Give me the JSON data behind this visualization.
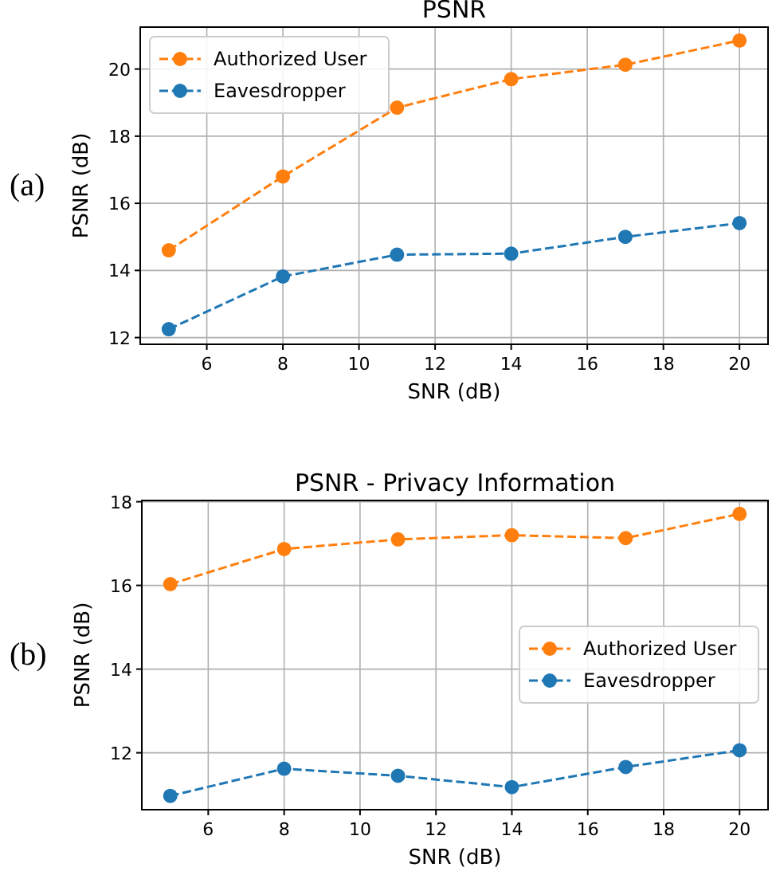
{
  "chart_data": [
    {
      "type": "line",
      "title": "PSNR",
      "xlabel": "SNR (dB)",
      "ylabel": "PSNR (dB)",
      "annotations": [
        "(a)"
      ],
      "x": [
        5,
        8,
        11,
        14,
        17,
        20
      ],
      "xlim": [
        4.25,
        20.75
      ],
      "xticks": [
        6,
        8,
        10,
        12,
        14,
        16,
        18,
        20
      ],
      "ylim": [
        11.8,
        21.25
      ],
      "yticks": [
        12,
        14,
        16,
        18,
        20
      ],
      "grid": true,
      "legend": "top left",
      "marker": "circle",
      "line_style": "dashed",
      "series": [
        {
          "name": "Authorized User",
          "color": "#ff7f0e",
          "values": [
            14.6,
            16.8,
            18.85,
            19.7,
            20.13,
            20.85
          ]
        },
        {
          "name": "Eavesdropper",
          "color": "#1f77b4",
          "values": [
            12.25,
            13.82,
            14.47,
            14.5,
            15.0,
            15.41
          ]
        }
      ]
    },
    {
      "type": "line",
      "title": "PSNR - Privacy Information",
      "xlabel": "SNR (dB)",
      "ylabel": "PSNR (dB)",
      "annotations": [
        "(b)"
      ],
      "x": [
        5,
        8,
        11,
        14,
        17,
        20
      ],
      "xlim": [
        4.25,
        20.75
      ],
      "xticks": [
        6,
        8,
        10,
        12,
        14,
        16,
        18,
        20
      ],
      "ylim": [
        10.64,
        18.03
      ],
      "yticks": [
        12,
        14,
        16,
        18
      ],
      "grid": true,
      "legend": "right",
      "marker": "circle",
      "line_style": "dashed",
      "series": [
        {
          "name": "Authorized User",
          "color": "#ff7f0e",
          "values": [
            16.03,
            16.87,
            17.1,
            17.2,
            17.13,
            17.71
          ]
        },
        {
          "name": "Eavesdropper",
          "color": "#1f77b4",
          "values": [
            10.97,
            11.62,
            11.45,
            11.18,
            11.66,
            12.06
          ]
        }
      ]
    }
  ]
}
